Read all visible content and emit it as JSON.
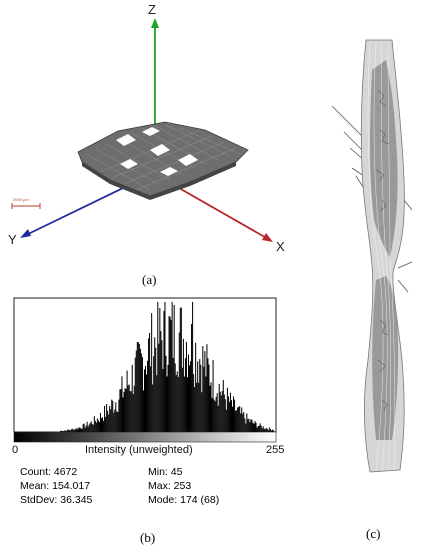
{
  "panel_a": {
    "caption": "(a)",
    "axes": {
      "z": "Z",
      "y": "Y",
      "x": "X"
    },
    "scale_bar_label": "2000 µm"
  },
  "panel_b": {
    "caption": "(b)",
    "gradient_label": "Intensity (unweighted)",
    "gradient_min": "0",
    "gradient_max": "255",
    "stats": {
      "count": "Count: 4672",
      "mean": "Mean: 154.017",
      "stddev": "StdDev: 36.345",
      "min": "Min: 45",
      "max": "Max: 253",
      "mode": "Mode: 174 (68)"
    }
  },
  "panel_c": {
    "caption": "(c)"
  },
  "chart_data": {
    "type": "bar",
    "xlabel": "Intensity (unweighted)",
    "xlim": [
      0,
      255
    ],
    "ylabel": "",
    "grid": false,
    "count": 4672,
    "mean": 154.017,
    "stddev": 36.345,
    "min": 45,
    "max": 253,
    "mode_value": 174,
    "mode_count": 68
  }
}
